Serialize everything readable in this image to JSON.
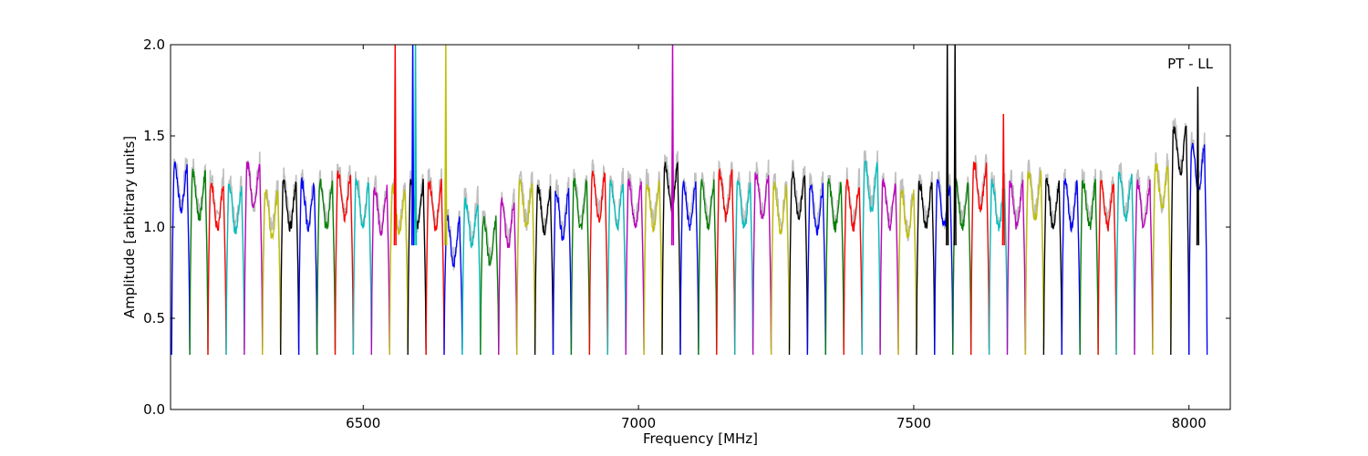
{
  "chart_data": {
    "type": "line",
    "title": "",
    "annotation": "PT - LL",
    "xlabel": "Frequency [MHz]",
    "ylabel": "Amplitude [arbitrary units]",
    "xlim": [
      6150,
      8075
    ],
    "ylim": [
      0.0,
      2.0
    ],
    "xticks": [
      6500,
      7000,
      7500,
      8000
    ],
    "xtick_labels": [
      "6500",
      "7000",
      "7500",
      "8000"
    ],
    "yticks": [
      0.0,
      0.5,
      1.0,
      1.5,
      2.0
    ],
    "ytick_labels": [
      "0.0",
      "0.5",
      "1.0",
      "1.5",
      "2.0"
    ],
    "grid": false,
    "legend": "none",
    "channel_width_mhz": 33,
    "series_color_cycle": [
      "#0000ff",
      "#008000",
      "#ff0000",
      "#00bfbf",
      "#bf00bf",
      "#bfbf00",
      "#000000"
    ],
    "background_series_color": "#bfbfbf",
    "spectral_windows": [
      {
        "start": 6152,
        "level": 1.3,
        "color": "#0000ff"
      },
      {
        "start": 6185,
        "level": 1.25,
        "color": "#008000"
      },
      {
        "start": 6218,
        "level": 1.2,
        "color": "#ff0000"
      },
      {
        "start": 6251,
        "level": 1.18,
        "color": "#00bfbf"
      },
      {
        "start": 6284,
        "level": 1.3,
        "color": "#bf00bf"
      },
      {
        "start": 6317,
        "level": 1.15,
        "color": "#bfbf00"
      },
      {
        "start": 6350,
        "level": 1.2,
        "color": "#000000"
      },
      {
        "start": 6383,
        "level": 1.2,
        "color": "#0000ff"
      },
      {
        "start": 6416,
        "level": 1.2,
        "color": "#008000"
      },
      {
        "start": 6449,
        "level": 1.25,
        "color": "#ff0000"
      },
      {
        "start": 6482,
        "level": 1.2,
        "color": "#00bfbf"
      },
      {
        "start": 6515,
        "level": 1.17,
        "color": "#bf00bf"
      },
      {
        "start": 6548,
        "level": 1.17,
        "color": "#bfbf00"
      },
      {
        "start": 6581,
        "level": 1.2,
        "color": "#000000"
      },
      {
        "start": 6614,
        "level": 1.2,
        "color": "#ff0000"
      },
      {
        "start": 6647,
        "level": 1.0,
        "color": "#0000ff"
      },
      {
        "start": 6680,
        "level": 1.1,
        "color": "#00bfbf"
      },
      {
        "start": 6713,
        "level": 1.0,
        "color": "#008000"
      },
      {
        "start": 6746,
        "level": 1.1,
        "color": "#bf00bf"
      },
      {
        "start": 6779,
        "level": 1.2,
        "color": "#bfbf00"
      },
      {
        "start": 6812,
        "level": 1.17,
        "color": "#000000"
      },
      {
        "start": 6845,
        "level": 1.15,
        "color": "#0000ff"
      },
      {
        "start": 6878,
        "level": 1.2,
        "color": "#008000"
      },
      {
        "start": 6911,
        "level": 1.25,
        "color": "#ff0000"
      },
      {
        "start": 6944,
        "level": 1.2,
        "color": "#00bfbf"
      },
      {
        "start": 6977,
        "level": 1.2,
        "color": "#bf00bf"
      },
      {
        "start": 7010,
        "level": 1.2,
        "color": "#bfbf00"
      },
      {
        "start": 7043,
        "level": 1.3,
        "color": "#000000"
      },
      {
        "start": 7076,
        "level": 1.2,
        "color": "#0000ff"
      },
      {
        "start": 7109,
        "level": 1.2,
        "color": "#008000"
      },
      {
        "start": 7142,
        "level": 1.25,
        "color": "#ff0000"
      },
      {
        "start": 7175,
        "level": 1.2,
        "color": "#00bfbf"
      },
      {
        "start": 7208,
        "level": 1.25,
        "color": "#bf00bf"
      },
      {
        "start": 7241,
        "level": 1.18,
        "color": "#bfbf00"
      },
      {
        "start": 7274,
        "level": 1.25,
        "color": "#000000"
      },
      {
        "start": 7307,
        "level": 1.18,
        "color": "#0000ff"
      },
      {
        "start": 7340,
        "level": 1.2,
        "color": "#008000"
      },
      {
        "start": 7373,
        "level": 1.2,
        "color": "#ff0000"
      },
      {
        "start": 7406,
        "level": 1.3,
        "color": "#00bfbf"
      },
      {
        "start": 7439,
        "level": 1.2,
        "color": "#bf00bf"
      },
      {
        "start": 7472,
        "level": 1.15,
        "color": "#bfbf00"
      },
      {
        "start": 7505,
        "level": 1.2,
        "color": "#000000"
      },
      {
        "start": 7538,
        "level": 1.2,
        "color": "#0000ff"
      },
      {
        "start": 7571,
        "level": 1.2,
        "color": "#008000"
      },
      {
        "start": 7604,
        "level": 1.3,
        "color": "#ff0000"
      },
      {
        "start": 7637,
        "level": 1.2,
        "color": "#00bfbf"
      },
      {
        "start": 7670,
        "level": 1.2,
        "color": "#bf00bf"
      },
      {
        "start": 7703,
        "level": 1.25,
        "color": "#bfbf00"
      },
      {
        "start": 7736,
        "level": 1.2,
        "color": "#000000"
      },
      {
        "start": 7769,
        "level": 1.2,
        "color": "#0000ff"
      },
      {
        "start": 7802,
        "level": 1.2,
        "color": "#008000"
      },
      {
        "start": 7835,
        "level": 1.2,
        "color": "#ff0000"
      },
      {
        "start": 7868,
        "level": 1.25,
        "color": "#00bfbf"
      },
      {
        "start": 7901,
        "level": 1.2,
        "color": "#bf00bf"
      },
      {
        "start": 7934,
        "level": 1.3,
        "color": "#bfbf00"
      },
      {
        "start": 7967,
        "level": 1.5,
        "color": "#000000"
      },
      {
        "start": 8000,
        "level": 1.4,
        "color": "#0000ff"
      }
    ],
    "rfi_spikes": [
      {
        "x": 6558,
        "y": 2.0,
        "color": "#ff0000"
      },
      {
        "x": 6590,
        "y": 2.0,
        "color": "#0000ff"
      },
      {
        "x": 6595,
        "y": 2.0,
        "color": "#00bfbf"
      },
      {
        "x": 6650,
        "y": 2.0,
        "color": "#bfbf00"
      },
      {
        "x": 7062,
        "y": 2.0,
        "color": "#bf00bf"
      },
      {
        "x": 7561,
        "y": 2.0,
        "color": "#000000"
      },
      {
        "x": 7575,
        "y": 2.0,
        "color": "#000000"
      },
      {
        "x": 8016,
        "y": 1.77,
        "color": "#000000"
      },
      {
        "x": 7663,
        "y": 1.62,
        "color": "#ff0000"
      }
    ]
  }
}
